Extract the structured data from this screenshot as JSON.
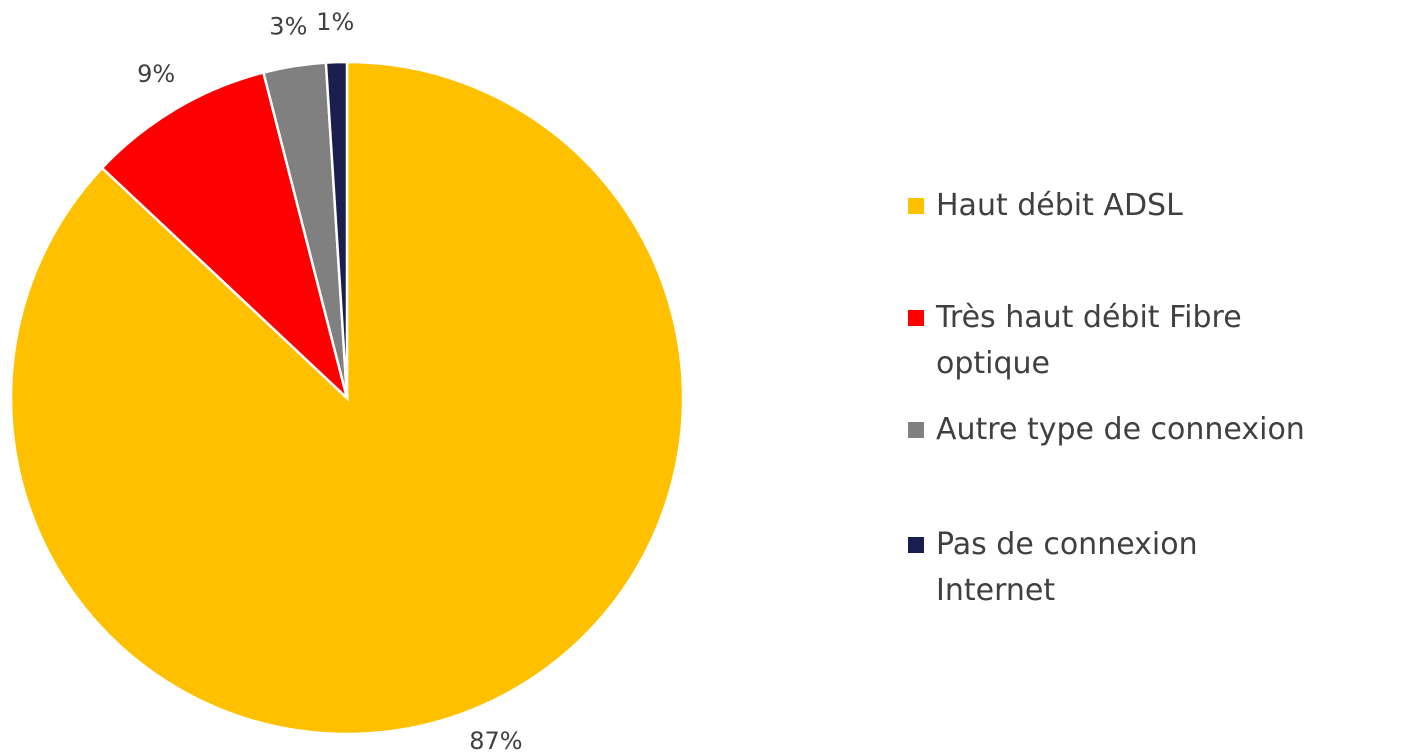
{
  "chart_data": {
    "type": "pie",
    "categories": [
      "Haut débit ADSL",
      "Très haut débit Fibre optique",
      "Autre type de connexion",
      "Pas de connexion Internet"
    ],
    "values": [
      87,
      9,
      3,
      1
    ],
    "value_labels": [
      "87%",
      "9%",
      "3%",
      "1%"
    ],
    "colors": [
      "#ffc000",
      "#ff0000",
      "#808080",
      "#1a1f4f"
    ],
    "legend": "right"
  }
}
